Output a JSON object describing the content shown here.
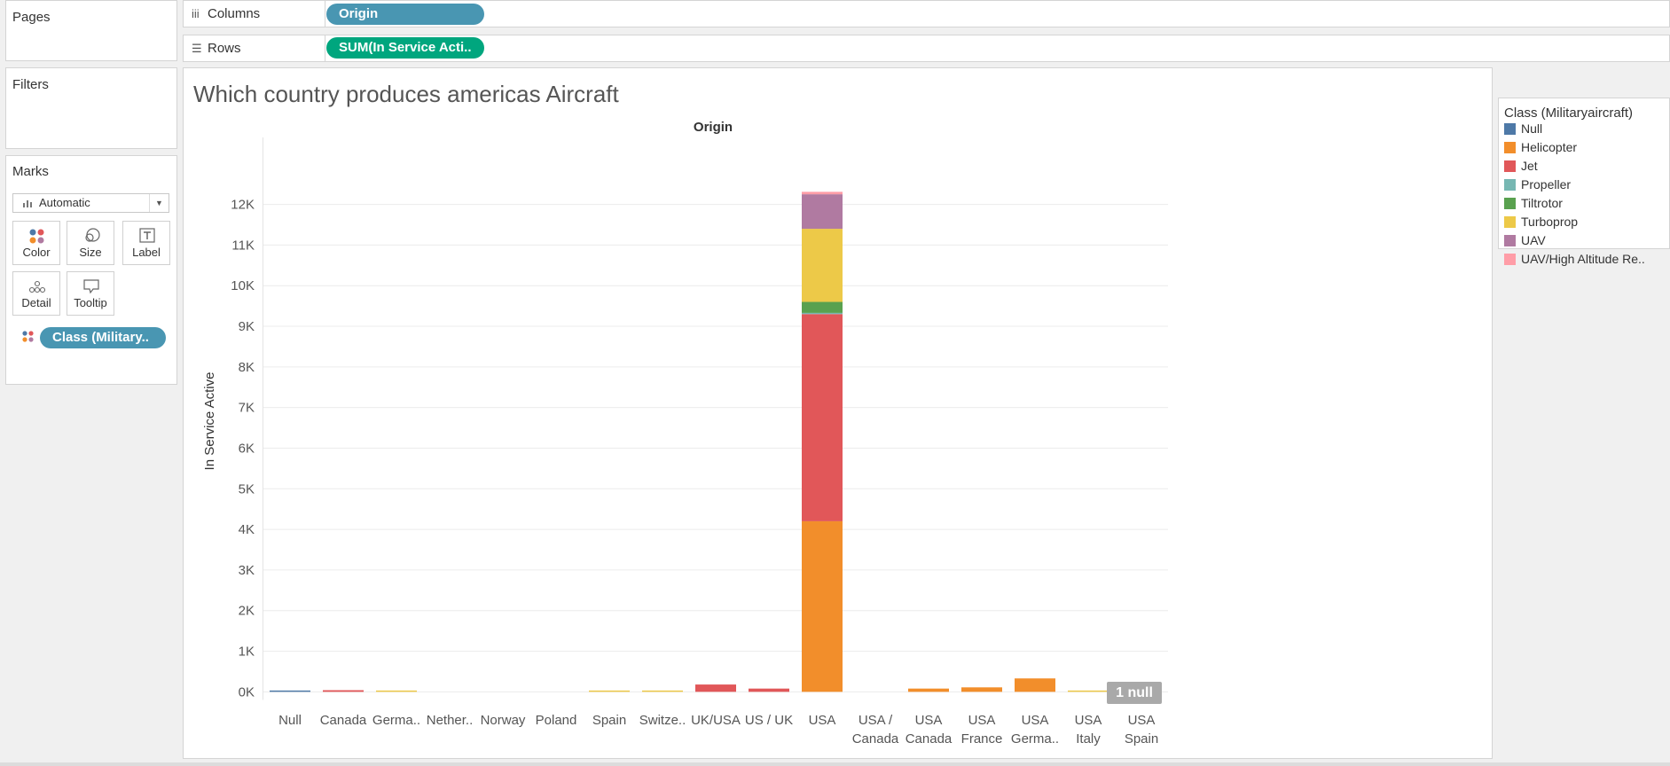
{
  "left_panel": {
    "pages_title": "Pages",
    "filters_title": "Filters",
    "marks_title": "Marks",
    "mark_type": "Automatic",
    "mark_buttons": [
      "Color",
      "Size",
      "Label",
      "Detail",
      "Tooltip"
    ],
    "marks_pill": "Class (Military.."
  },
  "shelves": {
    "columns_label": "Columns",
    "columns_pill": "Origin",
    "rows_label": "Rows",
    "rows_pill": "SUM(In Service Acti.."
  },
  "chart_title": "Which country produces americas Aircraft",
  "null_badge": "1 null",
  "legend": {
    "title": "Class (Militaryaircraft)",
    "items": [
      {
        "label": "Null",
        "color": "#4e79a7"
      },
      {
        "label": "Helicopter",
        "color": "#f28e2b"
      },
      {
        "label": "Jet",
        "color": "#e15759"
      },
      {
        "label": "Propeller",
        "color": "#76b7b2"
      },
      {
        "label": "Tiltrotor",
        "color": "#59a14f"
      },
      {
        "label": "Turboprop",
        "color": "#edc948"
      },
      {
        "label": "UAV",
        "color": "#b07aa1"
      },
      {
        "label": "UAV/High Altitude Re..",
        "color": "#ff9da7"
      }
    ]
  },
  "chart_data": {
    "type": "bar",
    "stacked": true,
    "column_header": "Origin",
    "ylabel": "In Service Active",
    "ylim": [
      -200,
      12700
    ],
    "yticks": [
      0,
      1000,
      2000,
      3000,
      4000,
      5000,
      6000,
      7000,
      8000,
      9000,
      10000,
      11000,
      12000
    ],
    "ytick_labels": [
      "0K",
      "1K",
      "2K",
      "3K",
      "4K",
      "5K",
      "6K",
      "7K",
      "8K",
      "9K",
      "10K",
      "11K",
      "12K"
    ],
    "categories": [
      [
        "Null"
      ],
      [
        "Canada"
      ],
      [
        "Germa.."
      ],
      [
        "Nether.."
      ],
      [
        "Norway"
      ],
      [
        "Poland"
      ],
      [
        "Spain"
      ],
      [
        "Switze.."
      ],
      [
        "UK/USA"
      ],
      [
        "US / UK"
      ],
      [
        "USA"
      ],
      [
        "USA /",
        "Canada"
      ],
      [
        "USA",
        "Canada"
      ],
      [
        "USA",
        "France"
      ],
      [
        "USA",
        "Germa.."
      ],
      [
        "USA",
        "Italy"
      ],
      [
        "USA",
        "Spain"
      ]
    ],
    "series": [
      {
        "name": "Null",
        "color": "#4e79a7",
        "values": [
          20,
          0,
          0,
          0,
          0,
          0,
          0,
          0,
          0,
          0,
          0,
          0,
          0,
          0,
          0,
          0,
          0
        ]
      },
      {
        "name": "Helicopter",
        "color": "#f28e2b",
        "values": [
          0,
          0,
          0,
          0,
          0,
          0,
          0,
          0,
          0,
          0,
          4200,
          0,
          80,
          110,
          330,
          0,
          0
        ]
      },
      {
        "name": "Jet",
        "color": "#e15759",
        "values": [
          0,
          40,
          0,
          0,
          0,
          0,
          0,
          0,
          180,
          80,
          5100,
          0,
          0,
          0,
          0,
          0,
          0
        ]
      },
      {
        "name": "Propeller",
        "color": "#76b7b2",
        "values": [
          0,
          0,
          0,
          0,
          0,
          0,
          0,
          0,
          0,
          0,
          30,
          0,
          0,
          0,
          0,
          0,
          0
        ]
      },
      {
        "name": "Tiltrotor",
        "color": "#59a14f",
        "values": [
          0,
          0,
          0,
          0,
          0,
          0,
          0,
          0,
          0,
          0,
          270,
          0,
          0,
          0,
          0,
          0,
          0
        ]
      },
      {
        "name": "Turboprop",
        "color": "#edc948",
        "values": [
          0,
          0,
          15,
          0,
          0,
          0,
          15,
          30,
          0,
          0,
          1800,
          0,
          0,
          0,
          0,
          15,
          15
        ]
      },
      {
        "name": "UAV",
        "color": "#b07aa1",
        "values": [
          0,
          0,
          0,
          0,
          0,
          0,
          0,
          0,
          0,
          0,
          850,
          0,
          0,
          0,
          0,
          0,
          0
        ]
      },
      {
        "name": "UAV/High Altitude Re..",
        "color": "#ff9da7",
        "values": [
          0,
          0,
          0,
          0,
          0,
          0,
          0,
          0,
          0,
          0,
          60,
          0,
          0,
          0,
          0,
          0,
          0
        ]
      }
    ]
  }
}
